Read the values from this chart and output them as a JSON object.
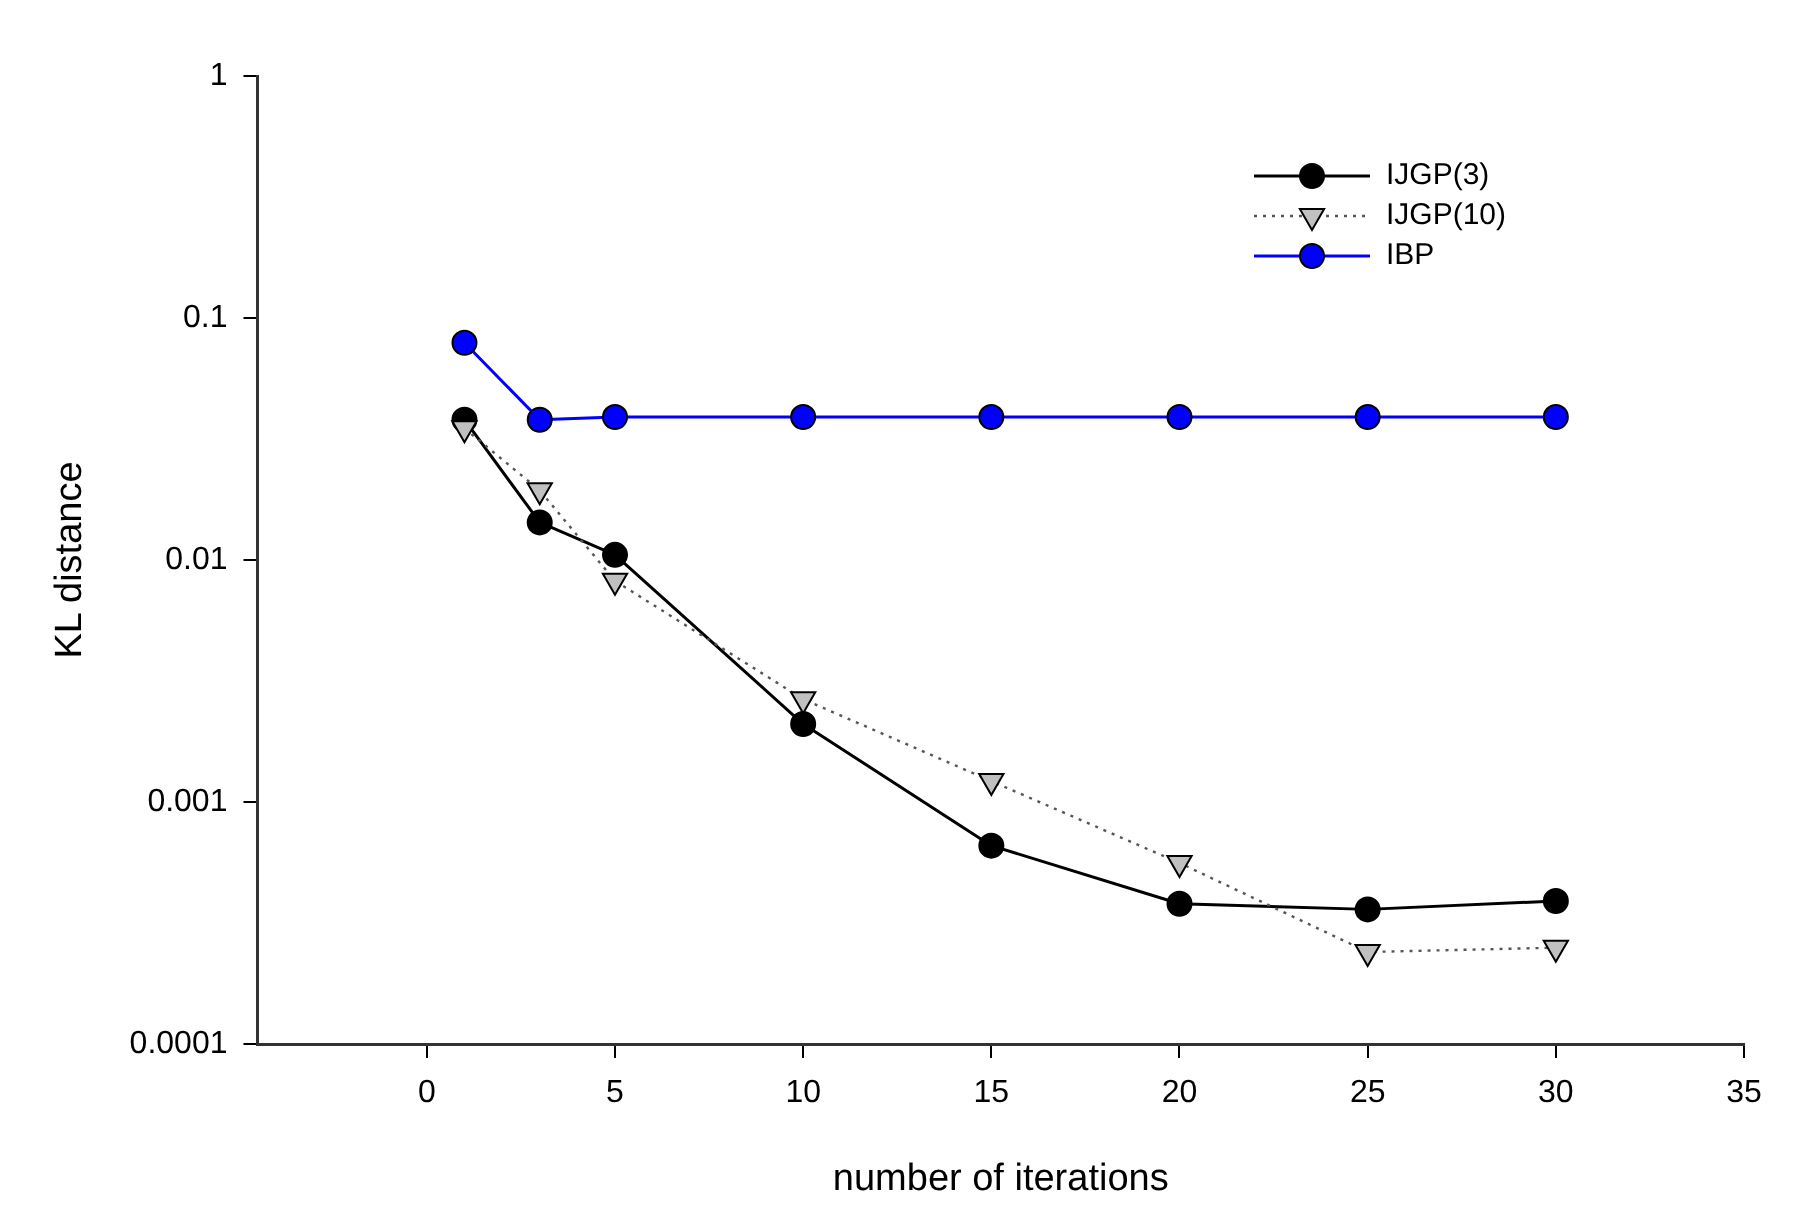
{
  "chart_data": {
    "type": "line",
    "xlabel": "number of iterations",
    "ylabel": "KL distance",
    "xlim": [
      -4.5,
      35
    ],
    "xticks": [
      0,
      5,
      10,
      15,
      20,
      25,
      30,
      35
    ],
    "ylim": [
      0.0001,
      1
    ],
    "yticks": [
      0.0001,
      0.001,
      0.01,
      0.1,
      1
    ],
    "log": "y",
    "grid": false,
    "legend": "top right",
    "x": [
      1,
      3,
      5,
      10,
      15,
      20,
      25,
      30
    ],
    "series": [
      {
        "name": "IJGP(3)",
        "color": "#000000",
        "marker": "circle",
        "line_style": "solid",
        "values": [
          0.038,
          0.0143,
          0.0105,
          0.0021,
          0.00066,
          0.00038,
          0.00036,
          0.00039
        ]
      },
      {
        "name": "IJGP(10)",
        "color": "#c0c0c0",
        "marker": "triangle",
        "line_style": "dotted",
        "values": [
          0.035,
          0.0194,
          0.0082,
          0.00266,
          0.00122,
          0.00056,
          0.00024,
          0.00025
        ]
      },
      {
        "name": "IBP",
        "color": "#0000ff",
        "marker": "circle",
        "line_style": "solid",
        "values": [
          0.079,
          0.038,
          0.039,
          0.039,
          0.039,
          0.039,
          0.039,
          0.039
        ]
      }
    ]
  }
}
